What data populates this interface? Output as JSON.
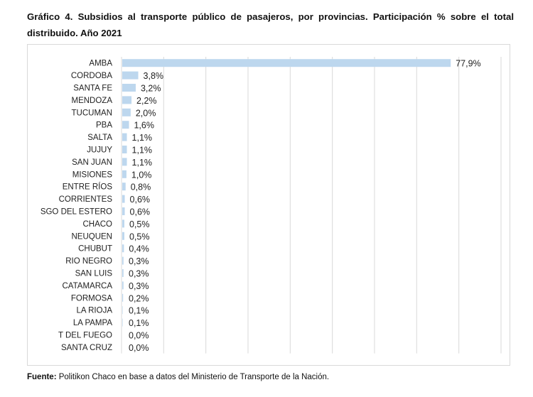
{
  "title": "Gráfico 4. Subsidios al transporte público de pasajeros, por provincias. Participación % sobre el total distribuido. Año 2021",
  "source_label": "Fuente:",
  "source_text": " Politikon Chaco en base a datos del Ministerio de Transporte de la Nación.",
  "chart_data": {
    "type": "bar",
    "orientation": "horizontal",
    "title": "Gráfico 4. Subsidios al transporte público de pasajeros, por provincias. Participación % sobre el total distribuido. Año 2021",
    "categories": [
      "AMBA",
      "CORDOBA",
      "SANTA FE",
      "MENDOZA",
      "TUCUMAN",
      "PBA",
      "SALTA",
      "JUJUY",
      "SAN JUAN",
      "MISIONES",
      "ENTRE RÍOS",
      "CORRIENTES",
      "SGO DEL ESTERO",
      "CHACO",
      "NEUQUEN",
      "CHUBUT",
      "RIO NEGRO",
      "SAN LUIS",
      "CATAMARCA",
      "FORMOSA",
      "LA RIOJA",
      "LA PAMPA",
      "T DEL FUEGO",
      "SANTA CRUZ"
    ],
    "values": [
      77.9,
      3.8,
      3.2,
      2.2,
      2.0,
      1.6,
      1.1,
      1.1,
      1.1,
      1.0,
      0.8,
      0.6,
      0.6,
      0.5,
      0.5,
      0.4,
      0.3,
      0.3,
      0.3,
      0.2,
      0.1,
      0.1,
      0.0,
      0.0
    ],
    "data_labels": [
      "77,9%",
      "3,8%",
      "3,2%",
      "2,2%",
      "2,0%",
      "1,6%",
      "1,1%",
      "1,1%",
      "1,1%",
      "1,0%",
      "0,8%",
      "0,6%",
      "0,6%",
      "0,5%",
      "0,5%",
      "0,4%",
      "0,3%",
      "0,3%",
      "0,3%",
      "0,2%",
      "0,1%",
      "0,1%",
      "0,0%",
      "0,0%"
    ],
    "xlim": [
      0,
      90
    ],
    "grid": true,
    "legend": "none",
    "bar_color": "#bdd7ee",
    "grid_color": "#d9d9d9"
  }
}
